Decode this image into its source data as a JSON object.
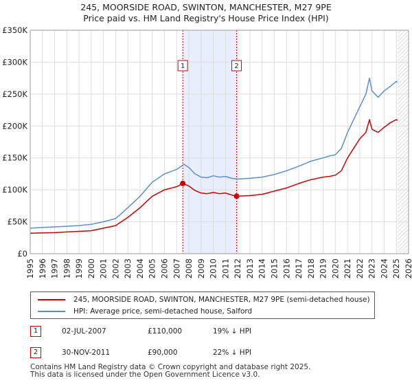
{
  "title_line1": "245, MOORSIDE ROAD, SWINTON, MANCHESTER, M27 9PE",
  "title_line2": "Price paid vs. HM Land Registry's House Price Index (HPI)",
  "legend": {
    "property_label": "245, MOORSIDE ROAD, SWINTON, MANCHESTER, M27 9PE (semi-detached house)",
    "hpi_label": "HPI: Average price, semi-detached house, Salford"
  },
  "transactions": [
    {
      "num": "1",
      "date": "02-JUL-2007",
      "price": "£110,000",
      "hpi_diff": "19% ↓ HPI"
    },
    {
      "num": "2",
      "date": "30-NOV-2011",
      "price": "£90,000",
      "hpi_diff": "22% ↓ HPI"
    }
  ],
  "footer_line1": "Contains HM Land Registry data © Crown copyright and database right 2025.",
  "footer_line2": "This data is licensed under the Open Government Licence v3.0.",
  "colors": {
    "property": "#cc0000",
    "hpi": "#5b8fd0",
    "shade": "#e8eefb",
    "grid": "#dddddd"
  },
  "chart_data": {
    "type": "line",
    "xlim": [
      1995,
      2026
    ],
    "ylim": [
      0,
      350000
    ],
    "yticks": [
      0,
      50000,
      100000,
      150000,
      200000,
      250000,
      300000,
      350000
    ],
    "ytick_labels": [
      "£0",
      "£50K",
      "£100K",
      "£150K",
      "£200K",
      "£250K",
      "£300K",
      "£350K"
    ],
    "xticks": [
      1995,
      1996,
      1997,
      1998,
      1999,
      2000,
      2001,
      2002,
      2003,
      2004,
      2005,
      2006,
      2007,
      2008,
      2009,
      2010,
      2011,
      2012,
      2013,
      2014,
      2015,
      2016,
      2017,
      2018,
      2019,
      2020,
      2021,
      2022,
      2023,
      2024,
      2025,
      2026
    ],
    "shaded_range": [
      2007.5,
      2011.91
    ],
    "hatched_from": 2025.1,
    "sales": [
      {
        "label": "1",
        "x": 2007.5,
        "y": 110000
      },
      {
        "label": "2",
        "x": 2011.91,
        "y": 90000
      }
    ],
    "series": [
      {
        "name": "HPI: Average price, semi-detached house, Salford",
        "x": [
          1995,
          1996,
          1997,
          1998,
          1999,
          2000,
          2001,
          2002,
          2003,
          2004,
          2005,
          2006,
          2007,
          2007.6,
          2008,
          2008.5,
          2009,
          2009.5,
          2010,
          2010.5,
          2011,
          2011.5,
          2012,
          2013,
          2014,
          2015,
          2016,
          2017,
          2018,
          2019,
          2019.5,
          2020,
          2020.5,
          2021,
          2021.5,
          2022,
          2022.5,
          2022.8,
          2023,
          2023.5,
          2024,
          2024.5,
          2025,
          2025.1
        ],
        "y": [
          40000,
          41000,
          42000,
          43000,
          44000,
          46000,
          50000,
          55000,
          72000,
          90000,
          112000,
          125000,
          132000,
          140000,
          135000,
          125000,
          120000,
          119000,
          122000,
          120000,
          121000,
          118000,
          117000,
          118000,
          120000,
          124000,
          130000,
          137000,
          145000,
          150000,
          153000,
          155000,
          165000,
          190000,
          210000,
          230000,
          250000,
          275000,
          255000,
          245000,
          255000,
          262000,
          270000,
          268000
        ]
      },
      {
        "name": "245, MOORSIDE ROAD, SWINTON, MANCHESTER, M27 9PE (semi-detached house)",
        "x": [
          1995,
          1996,
          1997,
          1998,
          1999,
          2000,
          2001,
          2002,
          2003,
          2004,
          2005,
          2006,
          2007,
          2007.5,
          2008,
          2008.5,
          2009,
          2009.5,
          2010,
          2010.5,
          2011,
          2011.5,
          2011.91,
          2012,
          2013,
          2014,
          2015,
          2016,
          2017,
          2018,
          2019,
          2019.5,
          2020,
          2020.5,
          2021,
          2021.5,
          2022,
          2022.5,
          2022.8,
          2023,
          2023.5,
          2024,
          2024.5,
          2025,
          2025.1
        ],
        "y": [
          32000,
          32500,
          33000,
          34000,
          35000,
          36000,
          40000,
          44000,
          57000,
          72000,
          90000,
          100000,
          105000,
          110000,
          106000,
          99000,
          95000,
          94000,
          96000,
          94000,
          95000,
          92000,
          90000,
          90000,
          91000,
          93000,
          98000,
          103000,
          110000,
          116000,
          120000,
          121000,
          123000,
          130000,
          150000,
          165000,
          180000,
          190000,
          210000,
          195000,
          190000,
          198000,
          205000,
          210000,
          209000
        ]
      }
    ]
  }
}
